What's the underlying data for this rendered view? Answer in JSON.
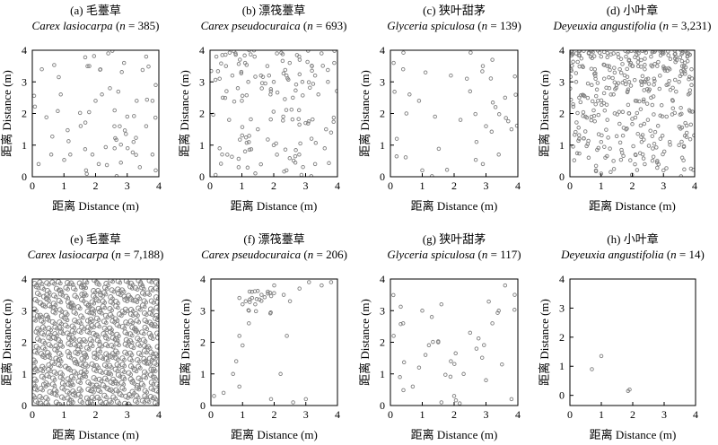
{
  "figure": {
    "axis_label": "距离 Distance (m)",
    "tick_labels": [
      "0",
      "1",
      "2",
      "3",
      "4"
    ],
    "point_stroke_color": "#7f7f7f",
    "axis_color": "#000000"
  },
  "chart_data": [
    {
      "type": "scatter",
      "panel": "(a)",
      "title_cn": "毛薹草",
      "species": "Carex lasiocarpa",
      "n_label": "385",
      "n": 385,
      "xlabel": "距离 Distance (m)",
      "ylabel": "距离 Distance (m)",
      "xlim": [
        0,
        4
      ],
      "ylim": [
        0,
        4
      ],
      "pattern": "sparse-random",
      "points": [
        [
          0.3,
          3.4
        ],
        [
          0.9,
          2.6
        ],
        [
          1.8,
          3.5
        ],
        [
          2.4,
          3.9
        ],
        [
          2.9,
          3.6
        ],
        [
          3.6,
          3.8
        ],
        [
          3.9,
          2.9
        ],
        [
          3.3,
          2.4
        ],
        [
          2.6,
          2.1
        ],
        [
          2.0,
          2.4
        ],
        [
          2.2,
          2.6
        ],
        [
          3.0,
          1.9
        ],
        [
          3.6,
          1.6
        ],
        [
          3.8,
          2.4
        ],
        [
          3.2,
          1.1
        ],
        [
          3.8,
          0.7
        ],
        [
          2.6,
          0.9
        ],
        [
          2.1,
          0.4
        ],
        [
          1.7,
          0.2
        ],
        [
          0.6,
          0.7
        ],
        [
          0.2,
          0.4
        ],
        [
          1.2,
          0.7
        ],
        [
          1.9,
          0.7
        ],
        [
          3.4,
          0.3
        ],
        [
          3.9,
          0.2
        ]
      ]
    },
    {
      "type": "scatter",
      "panel": "(b)",
      "title_cn": "漂筏薹草",
      "species": "Carex pseudocuraica",
      "n_label": "693",
      "n": 693,
      "xlabel": "距离 Distance (m)",
      "ylabel": "距离 Distance (m)",
      "xlim": [
        0,
        4
      ],
      "ylim": [
        0,
        4
      ],
      "pattern": "dense-top",
      "points": [
        [
          0.2,
          3.8
        ],
        [
          0.5,
          3.5
        ],
        [
          0.8,
          3.9
        ],
        [
          1.1,
          3.6
        ],
        [
          1.4,
          3.8
        ],
        [
          1.8,
          3.5
        ],
        [
          2.1,
          3.9
        ],
        [
          2.5,
          3.6
        ],
        [
          2.8,
          3.8
        ],
        [
          3.2,
          3.5
        ],
        [
          3.5,
          3.9
        ],
        [
          3.9,
          3.6
        ],
        [
          0.3,
          3.1
        ],
        [
          0.7,
          3.2
        ],
        [
          1.2,
          3.0
        ],
        [
          1.6,
          3.2
        ],
        [
          2.0,
          3.0
        ],
        [
          2.4,
          3.2
        ],
        [
          2.9,
          3.0
        ],
        [
          3.3,
          3.2
        ],
        [
          3.7,
          3.0
        ],
        [
          0.4,
          2.5
        ],
        [
          1.0,
          2.4
        ],
        [
          1.9,
          2.6
        ],
        [
          2.6,
          2.5
        ],
        [
          3.4,
          2.6
        ],
        [
          0.6,
          1.8
        ],
        [
          1.5,
          1.5
        ],
        [
          2.3,
          1.9
        ],
        [
          3.0,
          1.7
        ],
        [
          3.8,
          1.4
        ],
        [
          0.3,
          0.9
        ],
        [
          1.1,
          0.8
        ],
        [
          2.0,
          1.0
        ],
        [
          2.8,
          0.7
        ],
        [
          3.6,
          0.9
        ],
        [
          0.9,
          0.3
        ],
        [
          2.4,
          0.2
        ],
        [
          3.3,
          0.4
        ]
      ]
    },
    {
      "type": "scatter",
      "panel": "(c)",
      "title_cn": "狭叶甜茅",
      "species": "Glyceria spiculosa",
      "n_label": "139",
      "n": 139,
      "xlabel": "距离 Distance (m)",
      "ylabel": "距离 Distance (m)",
      "xlim": [
        0,
        4
      ],
      "ylim": [
        0,
        4
      ],
      "pattern": "sparse",
      "points": [
        [
          0.1,
          3.6
        ],
        [
          0.4,
          3.4
        ],
        [
          1.1,
          3.3
        ],
        [
          1.9,
          3.2
        ],
        [
          2.4,
          3.1
        ],
        [
          2.9,
          3.5
        ],
        [
          3.2,
          3.7
        ],
        [
          0.6,
          2.6
        ],
        [
          0.9,
          2.4
        ],
        [
          2.5,
          2.7
        ],
        [
          3.3,
          2.2
        ],
        [
          3.6,
          2.5
        ],
        [
          0.5,
          2.0
        ],
        [
          1.4,
          1.9
        ],
        [
          2.2,
          1.8
        ],
        [
          3.0,
          1.6
        ],
        [
          2.7,
          1.1
        ],
        [
          3.4,
          0.7
        ],
        [
          0.2,
          1.2
        ],
        [
          1.0,
          0.2
        ],
        [
          2.9,
          0.4
        ],
        [
          3.8,
          1.5
        ]
      ]
    },
    {
      "type": "scatter",
      "panel": "(d)",
      "title_cn": "小叶章",
      "species": "Deyeuxia angustifolia",
      "n_label": "3,231",
      "n": 3231,
      "xlabel": "距离 Distance (m)",
      "ylabel": "距离 Distance (m)",
      "xlim": [
        0,
        4
      ],
      "ylim": [
        0,
        4
      ],
      "pattern": "very-dense-top",
      "points": [
        [
          0.2,
          3.9
        ],
        [
          0.6,
          3.9
        ],
        [
          1.0,
          3.8
        ],
        [
          1.4,
          3.9
        ],
        [
          1.8,
          3.8
        ],
        [
          2.2,
          3.9
        ],
        [
          2.6,
          3.8
        ],
        [
          3.0,
          3.9
        ],
        [
          3.4,
          3.8
        ],
        [
          3.8,
          3.9
        ],
        [
          0.4,
          3.5
        ],
        [
          0.8,
          3.4
        ],
        [
          1.2,
          3.5
        ],
        [
          1.6,
          3.4
        ],
        [
          2.0,
          3.5
        ],
        [
          2.4,
          3.4
        ],
        [
          2.8,
          3.5
        ],
        [
          3.2,
          3.4
        ],
        [
          3.6,
          3.5
        ],
        [
          3.9,
          3.4
        ],
        [
          0.2,
          3.0
        ],
        [
          0.7,
          2.9
        ],
        [
          1.1,
          3.1
        ],
        [
          1.5,
          2.9
        ],
        [
          1.9,
          3.0
        ],
        [
          2.3,
          2.9
        ],
        [
          2.7,
          3.1
        ],
        [
          3.1,
          2.9
        ],
        [
          3.5,
          3.0
        ],
        [
          3.9,
          2.9
        ],
        [
          0.3,
          2.5
        ],
        [
          0.9,
          2.4
        ],
        [
          1.4,
          2.6
        ],
        [
          2.1,
          2.4
        ],
        [
          2.6,
          2.5
        ],
        [
          3.3,
          2.4
        ],
        [
          3.8,
          2.6
        ],
        [
          0.5,
          1.9
        ],
        [
          1.2,
          1.8
        ],
        [
          1.9,
          2.0
        ],
        [
          2.5,
          1.8
        ],
        [
          3.1,
          1.9
        ],
        [
          3.7,
          1.7
        ],
        [
          0.3,
          1.2
        ],
        [
          1.0,
          1.1
        ],
        [
          1.7,
          1.3
        ],
        [
          2.3,
          1.1
        ],
        [
          2.9,
          1.2
        ],
        [
          3.5,
          1.0
        ],
        [
          0.6,
          0.6
        ],
        [
          1.4,
          0.5
        ],
        [
          2.1,
          0.7
        ],
        [
          2.8,
          0.5
        ],
        [
          3.6,
          0.6
        ],
        [
          1.0,
          0.1
        ],
        [
          3.0,
          0.2
        ]
      ]
    },
    {
      "type": "scatter",
      "panel": "(e)",
      "title_cn": "毛薹草",
      "species": "Carex lasiocarpa",
      "n_label": "7,188",
      "n": 7188,
      "xlabel": "距离 Distance (m)",
      "ylabel": "距离 Distance (m)",
      "xlim": [
        0,
        4
      ],
      "ylim": [
        0,
        4
      ],
      "pattern": "very-dense-uniform",
      "grid_step": 0.2,
      "points": []
    },
    {
      "type": "scatter",
      "panel": "(f)",
      "title_cn": "漂筏薹草",
      "species": "Carex pseudocuraica",
      "n_label": "206",
      "n": 206,
      "xlabel": "距离 Distance (m)",
      "ylabel": "距离 Distance (m)",
      "xlim": [
        0,
        4
      ],
      "ylim": [
        0,
        4
      ],
      "pattern": "clustered-top",
      "points": [
        [
          0.9,
          3.4
        ],
        [
          1.0,
          3.2
        ],
        [
          1.1,
          3.3
        ],
        [
          1.2,
          3.0
        ],
        [
          1.3,
          3.4
        ],
        [
          1.4,
          3.2
        ],
        [
          1.6,
          3.5
        ],
        [
          1.8,
          3.6
        ],
        [
          2.0,
          3.8
        ],
        [
          2.3,
          3.5
        ],
        [
          2.5,
          3.3
        ],
        [
          2.8,
          3.7
        ],
        [
          3.1,
          3.9
        ],
        [
          3.5,
          3.8
        ],
        [
          3.8,
          3.9
        ],
        [
          1.2,
          2.6
        ],
        [
          0.9,
          2.2
        ],
        [
          1.0,
          1.9
        ],
        [
          0.8,
          1.4
        ],
        [
          0.7,
          1.0
        ],
        [
          0.9,
          0.6
        ],
        [
          0.4,
          0.4
        ],
        [
          0.1,
          0.3
        ],
        [
          1.9,
          0.2
        ],
        [
          2.2,
          1.0
        ],
        [
          2.6,
          0.1
        ],
        [
          3.0,
          0.2
        ],
        [
          2.4,
          2.2
        ]
      ]
    },
    {
      "type": "scatter",
      "panel": "(g)",
      "title_cn": "狭叶甜茅",
      "species": "Glyceria spiculosa",
      "n_label": "117",
      "n": 117,
      "xlabel": "距离 Distance (m)",
      "ylabel": "距离 Distance (m)",
      "xlim": [
        0,
        4
      ],
      "ylim": [
        0,
        4
      ],
      "pattern": "sparse",
      "points": [
        [
          0.1,
          2.2
        ],
        [
          0.4,
          2.6
        ],
        [
          1.0,
          3.0
        ],
        [
          1.3,
          2.8
        ],
        [
          1.6,
          3.2
        ],
        [
          2.5,
          2.3
        ],
        [
          3.2,
          2.6
        ],
        [
          3.6,
          3.8
        ],
        [
          3.9,
          3.5
        ],
        [
          0.3,
          0.9
        ],
        [
          0.7,
          0.6
        ],
        [
          1.1,
          1.6
        ],
        [
          1.5,
          2.0
        ],
        [
          1.9,
          1.4
        ],
        [
          2.3,
          1.0
        ],
        [
          2.7,
          1.8
        ],
        [
          3.0,
          0.8
        ],
        [
          3.5,
          1.3
        ],
        [
          3.8,
          0.2
        ],
        [
          1.6,
          0.1
        ],
        [
          2.0,
          0.3
        ],
        [
          0.9,
          1.2
        ],
        [
          3.4,
          3.0
        ]
      ]
    },
    {
      "type": "scatter",
      "panel": "(h)",
      "title_cn": "小叶章",
      "species": "Deyeuxia angustifolia",
      "n_label": "14",
      "n": 14,
      "xlabel": "距离 Distance (m)",
      "ylabel": "距离 Distance (m)",
      "xlim": [
        0,
        4
      ],
      "ylim": [
        -0.35,
        4
      ],
      "pattern": "very-sparse",
      "points": [
        [
          0.7,
          0.9
        ],
        [
          1.0,
          1.35
        ],
        [
          1.9,
          0.2
        ],
        [
          1.85,
          0.15
        ]
      ]
    }
  ]
}
